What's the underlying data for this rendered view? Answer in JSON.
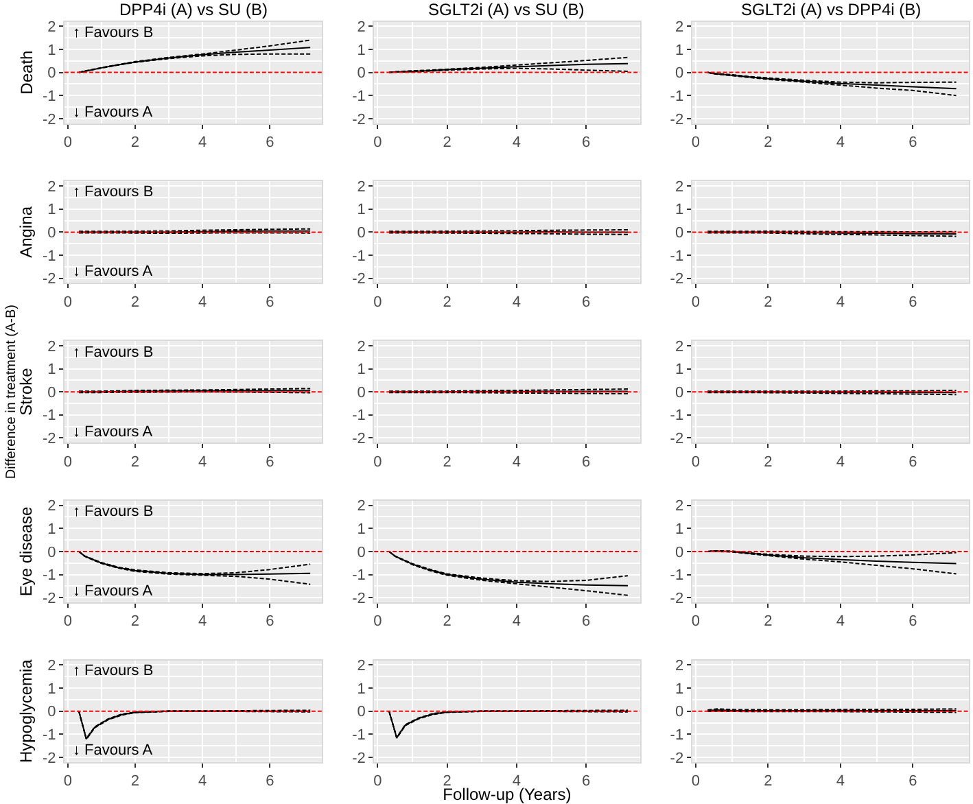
{
  "chart_data": [
    {
      "type": "line",
      "title": "DPP4i (A) vs SU (B)",
      "ylabel": "Death",
      "annotations": [
        "↑ Favours B",
        "↓ Favours A"
      ],
      "x": [
        0.33,
        0.5,
        1,
        1.5,
        2,
        3,
        4,
        5,
        6,
        7.2
      ],
      "xlim": [
        -0.1,
        7.55
      ],
      "xticks": [
        0,
        2,
        4,
        6
      ],
      "ylim": [
        -2.2,
        2.2
      ],
      "yticks": [
        -2,
        -1,
        0,
        1,
        2
      ],
      "grid": true,
      "ref_lines": [
        {
          "axis": "y",
          "value": 0,
          "color": "#ff0000",
          "line_style": "dashed"
        }
      ],
      "series": [
        {
          "color": "#000000",
          "line_style": "solid",
          "values": [
            0,
            0.05,
            0.2,
            0.33,
            0.45,
            0.63,
            0.77,
            0.88,
            0.97,
            1.08
          ]
        },
        {
          "color": "#000000",
          "line_style": "dashed",
          "values": [
            0,
            0.05,
            0.19,
            0.32,
            0.44,
            0.6,
            0.72,
            0.78,
            0.8,
            0.8
          ]
        },
        {
          "color": "#000000",
          "line_style": "dashed",
          "values": [
            0,
            0.06,
            0.21,
            0.34,
            0.47,
            0.65,
            0.8,
            0.97,
            1.15,
            1.4
          ]
        }
      ]
    },
    {
      "type": "line",
      "title": "SGLT2i (A) vs SU (B)",
      "x": [
        0.33,
        0.5,
        1,
        1.5,
        2,
        3,
        4,
        5,
        6,
        7.2
      ],
      "xlim": [
        -0.1,
        7.55
      ],
      "xticks": [
        0,
        2,
        4,
        6
      ],
      "ylim": [
        -2.2,
        2.2
      ],
      "yticks": [
        -2,
        -1,
        0,
        1,
        2
      ],
      "grid": true,
      "ref_lines": [
        {
          "axis": "y",
          "value": 0,
          "color": "#ff0000",
          "line_style": "dashed"
        }
      ],
      "series": [
        {
          "color": "#000000",
          "line_style": "solid",
          "values": [
            0,
            0.02,
            0.05,
            0.08,
            0.12,
            0.18,
            0.25,
            0.3,
            0.35,
            0.38
          ]
        },
        {
          "color": "#000000",
          "line_style": "dashed",
          "values": [
            0,
            0.01,
            0.03,
            0.06,
            0.1,
            0.15,
            0.18,
            0.15,
            0.1,
            0.05
          ]
        },
        {
          "color": "#000000",
          "line_style": "dashed",
          "values": [
            0,
            0.03,
            0.07,
            0.1,
            0.14,
            0.22,
            0.32,
            0.42,
            0.52,
            0.65
          ]
        }
      ]
    },
    {
      "type": "line",
      "title": "SGLT2i (A) vs DPP4i (B)",
      "x": [
        0.33,
        0.5,
        1,
        1.5,
        2,
        3,
        4,
        5,
        6,
        7.2
      ],
      "xlim": [
        -0.1,
        7.55
      ],
      "xticks": [
        0,
        2,
        4,
        6
      ],
      "ylim": [
        -2.2,
        2.2
      ],
      "yticks": [
        -2,
        -1,
        0,
        1,
        2
      ],
      "grid": true,
      "ref_lines": [
        {
          "axis": "y",
          "value": 0,
          "color": "#ff0000",
          "line_style": "dashed"
        }
      ],
      "series": [
        {
          "color": "#000000",
          "line_style": "solid",
          "values": [
            0,
            -0.05,
            -0.12,
            -0.2,
            -0.27,
            -0.38,
            -0.48,
            -0.55,
            -0.62,
            -0.7
          ]
        },
        {
          "color": "#000000",
          "line_style": "dashed",
          "values": [
            0,
            -0.06,
            -0.14,
            -0.22,
            -0.3,
            -0.42,
            -0.55,
            -0.68,
            -0.78,
            -1.0
          ]
        },
        {
          "color": "#000000",
          "line_style": "dashed",
          "values": [
            0,
            -0.04,
            -0.1,
            -0.18,
            -0.24,
            -0.34,
            -0.42,
            -0.45,
            -0.43,
            -0.42
          ]
        }
      ]
    },
    {
      "type": "line",
      "ylabel": "Angina",
      "annotations": [
        "↑ Favours B",
        "↓ Favours A"
      ],
      "x": [
        0.33,
        0.5,
        1,
        1.5,
        2,
        3,
        4,
        5,
        6,
        7.2
      ],
      "xlim": [
        -0.1,
        7.55
      ],
      "xticks": [
        0,
        2,
        4,
        6
      ],
      "ylim": [
        -2.2,
        2.2
      ],
      "yticks": [
        -2,
        -1,
        0,
        1,
        2
      ],
      "grid": true,
      "ref_lines": [
        {
          "axis": "y",
          "value": 0,
          "color": "#ff0000",
          "line_style": "dashed"
        }
      ],
      "series": [
        {
          "color": "#000000",
          "line_style": "solid",
          "values": [
            0,
            0,
            0,
            0,
            0,
            0,
            0.02,
            0.04,
            0.05,
            0.05
          ]
        },
        {
          "color": "#000000",
          "line_style": "dashed",
          "values": [
            -0.03,
            -0.03,
            -0.03,
            -0.03,
            -0.04,
            -0.05,
            -0.04,
            -0.03,
            -0.03,
            -0.04
          ]
        },
        {
          "color": "#000000",
          "line_style": "dashed",
          "values": [
            0.03,
            0.03,
            0.03,
            0.03,
            0.04,
            0.05,
            0.08,
            0.1,
            0.12,
            0.14
          ]
        }
      ]
    },
    {
      "type": "line",
      "x": [
        0.33,
        0.5,
        1,
        1.5,
        2,
        3,
        4,
        5,
        6,
        7.2
      ],
      "xlim": [
        -0.1,
        7.55
      ],
      "xticks": [
        0,
        2,
        4,
        6
      ],
      "ylim": [
        -2.2,
        2.2
      ],
      "yticks": [
        -2,
        -1,
        0,
        1,
        2
      ],
      "grid": true,
      "ref_lines": [
        {
          "axis": "y",
          "value": 0,
          "color": "#ff0000",
          "line_style": "dashed"
        }
      ],
      "series": [
        {
          "color": "#000000",
          "line_style": "solid",
          "values": [
            0,
            0,
            0,
            0,
            0,
            0,
            0,
            0.01,
            0,
            0
          ]
        },
        {
          "color": "#000000",
          "line_style": "dashed",
          "values": [
            -0.03,
            -0.03,
            -0.03,
            -0.03,
            -0.04,
            -0.05,
            -0.06,
            -0.07,
            -0.09,
            -0.1
          ]
        },
        {
          "color": "#000000",
          "line_style": "dashed",
          "values": [
            0.03,
            0.03,
            0.03,
            0.03,
            0.04,
            0.05,
            0.06,
            0.08,
            0.09,
            0.1
          ]
        }
      ]
    },
    {
      "type": "line",
      "x": [
        0.33,
        0.5,
        1,
        1.5,
        2,
        3,
        4,
        5,
        6,
        7.2
      ],
      "xlim": [
        -0.1,
        7.55
      ],
      "xticks": [
        0,
        2,
        4,
        6
      ],
      "ylim": [
        -2.2,
        2.2
      ],
      "yticks": [
        -2,
        -1,
        0,
        1,
        2
      ],
      "grid": true,
      "ref_lines": [
        {
          "axis": "y",
          "value": 0,
          "color": "#ff0000",
          "line_style": "dashed"
        }
      ],
      "series": [
        {
          "color": "#000000",
          "line_style": "solid",
          "values": [
            0,
            0,
            0,
            0,
            0,
            -0.02,
            -0.04,
            -0.05,
            -0.07,
            -0.08
          ]
        },
        {
          "color": "#000000",
          "line_style": "dashed",
          "values": [
            -0.03,
            -0.03,
            -0.03,
            -0.03,
            -0.04,
            -0.07,
            -0.1,
            -0.12,
            -0.15,
            -0.18
          ]
        },
        {
          "color": "#000000",
          "line_style": "dashed",
          "values": [
            0.03,
            0.03,
            0.03,
            0.03,
            0.04,
            0.03,
            0.02,
            0.02,
            0.01,
            0.02
          ]
        }
      ]
    },
    {
      "type": "line",
      "ylabel": "Stroke",
      "annotations": [
        "↑ Favours B",
        "↓ Favours A",
        "Difference in treatment (A-B)"
      ],
      "x": [
        0.33,
        0.5,
        1,
        1.5,
        2,
        3,
        4,
        5,
        6,
        7.2
      ],
      "xlim": [
        -0.1,
        7.55
      ],
      "xticks": [
        0,
        2,
        4,
        6
      ],
      "ylim": [
        -2.2,
        2.2
      ],
      "yticks": [
        -2,
        -1,
        0,
        1,
        2
      ],
      "grid": true,
      "ref_lines": [
        {
          "axis": "y",
          "value": 0,
          "color": "#ff0000",
          "line_style": "dashed"
        }
      ],
      "series": [
        {
          "color": "#000000",
          "line_style": "solid",
          "values": [
            0,
            0,
            0,
            0.01,
            0.02,
            0.03,
            0.04,
            0.05,
            0.05,
            0.05
          ]
        },
        {
          "color": "#000000",
          "line_style": "dashed",
          "values": [
            -0.03,
            -0.03,
            -0.03,
            -0.02,
            -0.02,
            -0.01,
            0,
            -0.01,
            -0.02,
            -0.04
          ]
        },
        {
          "color": "#000000",
          "line_style": "dashed",
          "values": [
            0.03,
            0.03,
            0.03,
            0.04,
            0.06,
            0.07,
            0.08,
            0.1,
            0.12,
            0.14
          ]
        }
      ]
    },
    {
      "type": "line",
      "x": [
        0.33,
        0.5,
        1,
        1.5,
        2,
        3,
        4,
        5,
        6,
        7.2
      ],
      "xlim": [
        -0.1,
        7.55
      ],
      "xticks": [
        0,
        2,
        4,
        6
      ],
      "ylim": [
        -2.2,
        2.2
      ],
      "yticks": [
        -2,
        -1,
        0,
        1,
        2
      ],
      "grid": true,
      "ref_lines": [
        {
          "axis": "y",
          "value": 0,
          "color": "#ff0000",
          "line_style": "dashed"
        }
      ],
      "series": [
        {
          "color": "#000000",
          "line_style": "solid",
          "values": [
            0,
            0,
            0,
            0,
            0,
            0.01,
            0.01,
            0.02,
            0.02,
            0.02
          ]
        },
        {
          "color": "#000000",
          "line_style": "dashed",
          "values": [
            -0.03,
            -0.03,
            -0.03,
            -0.03,
            -0.03,
            -0.04,
            -0.05,
            -0.06,
            -0.07,
            -0.08
          ]
        },
        {
          "color": "#000000",
          "line_style": "dashed",
          "values": [
            0.03,
            0.03,
            0.03,
            0.03,
            0.03,
            0.05,
            0.06,
            0.08,
            0.1,
            0.12
          ]
        }
      ]
    },
    {
      "type": "line",
      "x": [
        0.33,
        0.5,
        1,
        1.5,
        2,
        3,
        4,
        5,
        6,
        7.2
      ],
      "xlim": [
        -0.1,
        7.55
      ],
      "xticks": [
        0,
        2,
        4,
        6
      ],
      "ylim": [
        -2.2,
        2.2
      ],
      "yticks": [
        -2,
        -1,
        0,
        1,
        2
      ],
      "grid": true,
      "ref_lines": [
        {
          "axis": "y",
          "value": 0,
          "color": "#ff0000",
          "line_style": "dashed"
        }
      ],
      "series": [
        {
          "color": "#000000",
          "line_style": "solid",
          "values": [
            0,
            0,
            0,
            0,
            0,
            -0.01,
            -0.02,
            -0.02,
            -0.03,
            -0.03
          ]
        },
        {
          "color": "#000000",
          "line_style": "dashed",
          "values": [
            -0.03,
            -0.03,
            -0.03,
            -0.03,
            -0.04,
            -0.05,
            -0.07,
            -0.08,
            -0.1,
            -0.12
          ]
        },
        {
          "color": "#000000",
          "line_style": "dashed",
          "values": [
            0.03,
            0.03,
            0.03,
            0.03,
            0.03,
            0.03,
            0.03,
            0.04,
            0.04,
            0.06
          ]
        }
      ]
    },
    {
      "type": "line",
      "ylabel": "Eye disease",
      "annotations": [
        "↑ Favours B",
        "↓ Favours A"
      ],
      "x": [
        0.33,
        0.5,
        1,
        1.5,
        2,
        3,
        4,
        5,
        6,
        7.2
      ],
      "xlim": [
        -0.1,
        7.55
      ],
      "xticks": [
        0,
        2,
        4,
        6
      ],
      "ylim": [
        -2.2,
        2.2
      ],
      "yticks": [
        -2,
        -1,
        0,
        1,
        2
      ],
      "grid": true,
      "ref_lines": [
        {
          "axis": "y",
          "value": 0,
          "color": "#ff0000",
          "line_style": "dashed"
        }
      ],
      "series": [
        {
          "color": "#000000",
          "line_style": "solid",
          "values": [
            0,
            -0.2,
            -0.5,
            -0.7,
            -0.83,
            -0.95,
            -1.0,
            -1.0,
            -0.98,
            -0.95
          ]
        },
        {
          "color": "#000000",
          "line_style": "dashed",
          "values": [
            0,
            -0.21,
            -0.52,
            -0.72,
            -0.86,
            -0.98,
            -1.03,
            -1.08,
            -1.2,
            -1.42
          ]
        },
        {
          "color": "#000000",
          "line_style": "dashed",
          "values": [
            0,
            -0.19,
            -0.48,
            -0.68,
            -0.8,
            -0.92,
            -0.96,
            -0.92,
            -0.78,
            -0.55
          ]
        }
      ]
    },
    {
      "type": "line",
      "x": [
        0.33,
        0.5,
        1,
        1.5,
        2,
        3,
        4,
        5,
        6,
        7.2
      ],
      "xlim": [
        -0.1,
        7.55
      ],
      "xticks": [
        0,
        2,
        4,
        6
      ],
      "ylim": [
        -2.2,
        2.2
      ],
      "yticks": [
        -2,
        -1,
        0,
        1,
        2
      ],
      "grid": true,
      "ref_lines": [
        {
          "axis": "y",
          "value": 0,
          "color": "#ff0000",
          "line_style": "dashed"
        }
      ],
      "series": [
        {
          "color": "#000000",
          "line_style": "solid",
          "values": [
            0,
            -0.2,
            -0.55,
            -0.8,
            -1.0,
            -1.2,
            -1.33,
            -1.4,
            -1.45,
            -1.48
          ]
        },
        {
          "color": "#000000",
          "line_style": "dashed",
          "values": [
            0,
            -0.21,
            -0.57,
            -0.83,
            -1.03,
            -1.25,
            -1.4,
            -1.55,
            -1.7,
            -1.9
          ]
        },
        {
          "color": "#000000",
          "line_style": "dashed",
          "values": [
            0,
            -0.19,
            -0.53,
            -0.77,
            -0.97,
            -1.15,
            -1.27,
            -1.3,
            -1.25,
            -1.05
          ]
        }
      ]
    },
    {
      "type": "line",
      "x": [
        0.33,
        0.5,
        1,
        1.5,
        2,
        3,
        4,
        5,
        6,
        7.2
      ],
      "xlim": [
        -0.1,
        7.55
      ],
      "xticks": [
        0,
        2,
        4,
        6
      ],
      "ylim": [
        -2.2,
        2.2
      ],
      "yticks": [
        -2,
        -1,
        0,
        1,
        2
      ],
      "grid": true,
      "ref_lines": [
        {
          "axis": "y",
          "value": 0,
          "color": "#ff0000",
          "line_style": "dashed"
        }
      ],
      "series": [
        {
          "color": "#000000",
          "line_style": "solid",
          "values": [
            0,
            0.02,
            0,
            -0.08,
            -0.15,
            -0.27,
            -0.35,
            -0.42,
            -0.47,
            -0.52
          ]
        },
        {
          "color": "#000000",
          "line_style": "dashed",
          "values": [
            0,
            0.01,
            -0.02,
            -0.1,
            -0.18,
            -0.33,
            -0.45,
            -0.6,
            -0.75,
            -0.97
          ]
        },
        {
          "color": "#000000",
          "line_style": "dashed",
          "values": [
            0,
            0.03,
            0.02,
            -0.06,
            -0.12,
            -0.2,
            -0.22,
            -0.2,
            -0.15,
            -0.05
          ]
        }
      ]
    },
    {
      "type": "line",
      "ylabel": "Hypoglycemia",
      "annotations": [
        "↑ Favours B",
        "↓ Favours A"
      ],
      "x": [
        0.33,
        0.55,
        0.8,
        1.2,
        1.6,
        2,
        3,
        4,
        5,
        6,
        7.2
      ],
      "xlim": [
        -0.1,
        7.55
      ],
      "xticks": [
        0,
        2,
        4,
        6
      ],
      "ylim": [
        -2.2,
        2.2
      ],
      "yticks": [
        -2,
        -1,
        0,
        1,
        2
      ],
      "grid": true,
      "ref_lines": [
        {
          "axis": "y",
          "value": 0,
          "color": "#ff0000",
          "line_style": "dashed"
        }
      ],
      "series": [
        {
          "color": "#000000",
          "line_style": "solid",
          "values": [
            0,
            -1.2,
            -0.7,
            -0.35,
            -0.15,
            -0.05,
            0,
            0,
            0,
            0,
            0
          ]
        },
        {
          "color": "#000000",
          "line_style": "dashed",
          "values": [
            0,
            -1.22,
            -0.72,
            -0.37,
            -0.17,
            -0.06,
            -0.01,
            -0.01,
            -0.01,
            -0.02,
            -0.03
          ]
        },
        {
          "color": "#000000",
          "line_style": "dashed",
          "values": [
            0,
            -1.18,
            -0.68,
            -0.33,
            -0.13,
            -0.04,
            0.01,
            0.01,
            0.02,
            0.03,
            0.04
          ]
        }
      ]
    },
    {
      "type": "line",
      "xlabel": "Follow-up (Years)",
      "x": [
        0.33,
        0.55,
        0.8,
        1.2,
        1.6,
        2,
        3,
        4,
        5,
        6,
        7.2
      ],
      "xlim": [
        -0.1,
        7.55
      ],
      "xticks": [
        0,
        2,
        4,
        6
      ],
      "ylim": [
        -2.2,
        2.2
      ],
      "yticks": [
        -2,
        -1,
        0,
        1,
        2
      ],
      "grid": true,
      "ref_lines": [
        {
          "axis": "y",
          "value": 0,
          "color": "#ff0000",
          "line_style": "dashed"
        }
      ],
      "series": [
        {
          "color": "#000000",
          "line_style": "solid",
          "values": [
            0,
            -1.15,
            -0.6,
            -0.3,
            -0.12,
            -0.04,
            0,
            0,
            0,
            0,
            0
          ]
        },
        {
          "color": "#000000",
          "line_style": "dashed",
          "values": [
            0,
            -1.17,
            -0.62,
            -0.32,
            -0.14,
            -0.05,
            -0.01,
            -0.01,
            -0.01,
            -0.02,
            -0.03
          ]
        },
        {
          "color": "#000000",
          "line_style": "dashed",
          "values": [
            0,
            -1.13,
            -0.58,
            -0.28,
            -0.1,
            -0.03,
            0.01,
            0.01,
            0.02,
            0.03,
            0.04
          ]
        }
      ]
    },
    {
      "type": "line",
      "x": [
        0.33,
        0.6,
        1,
        2,
        3,
        4,
        5,
        6,
        7.2
      ],
      "xlim": [
        -0.1,
        7.55
      ],
      "xticks": [
        0,
        2,
        4,
        6
      ],
      "ylim": [
        -2.2,
        2.2
      ],
      "yticks": [
        -2,
        -1,
        0,
        1,
        2
      ],
      "grid": true,
      "ref_lines": [
        {
          "axis": "y",
          "value": 0,
          "color": "#ff0000",
          "line_style": "dashed"
        }
      ],
      "series": [
        {
          "color": "#000000",
          "line_style": "solid",
          "values": [
            0.02,
            0.05,
            0.03,
            0.02,
            0.02,
            0.03,
            0.02,
            0.02,
            0.03
          ]
        },
        {
          "color": "#000000",
          "line_style": "dashed",
          "values": [
            -0.01,
            0,
            -0.01,
            -0.02,
            -0.02,
            -0.02,
            -0.03,
            -0.04,
            -0.05
          ]
        },
        {
          "color": "#000000",
          "line_style": "dashed",
          "values": [
            0.05,
            0.1,
            0.07,
            0.06,
            0.06,
            0.07,
            0.07,
            0.08,
            0.1
          ]
        }
      ]
    }
  ]
}
